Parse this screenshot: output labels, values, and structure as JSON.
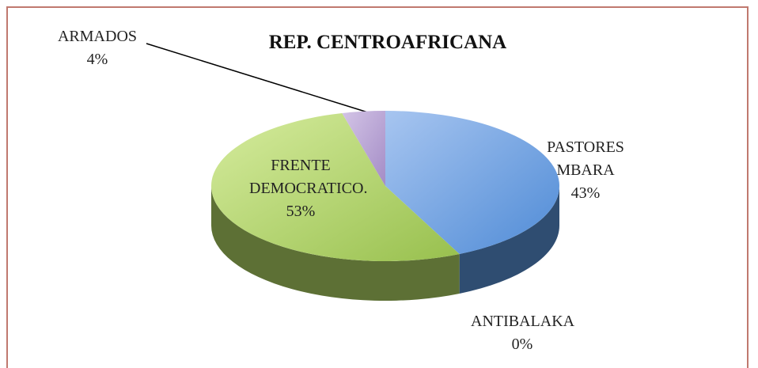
{
  "chart_data": {
    "type": "pie",
    "title": "REP. CENTROAFRICANA",
    "categories": [
      "PASTORES MBARA",
      "ANTIBALAKA",
      "FRENTE DEMOCRATICO.",
      "ARMADOS"
    ],
    "values": [
      43,
      0,
      53,
      4
    ],
    "value_labels": [
      "43%",
      "0%",
      "53%",
      "4%"
    ],
    "colors": [
      "#4f81bd",
      "#c0504d",
      "#9bbb59",
      "#8064a2"
    ]
  }
}
